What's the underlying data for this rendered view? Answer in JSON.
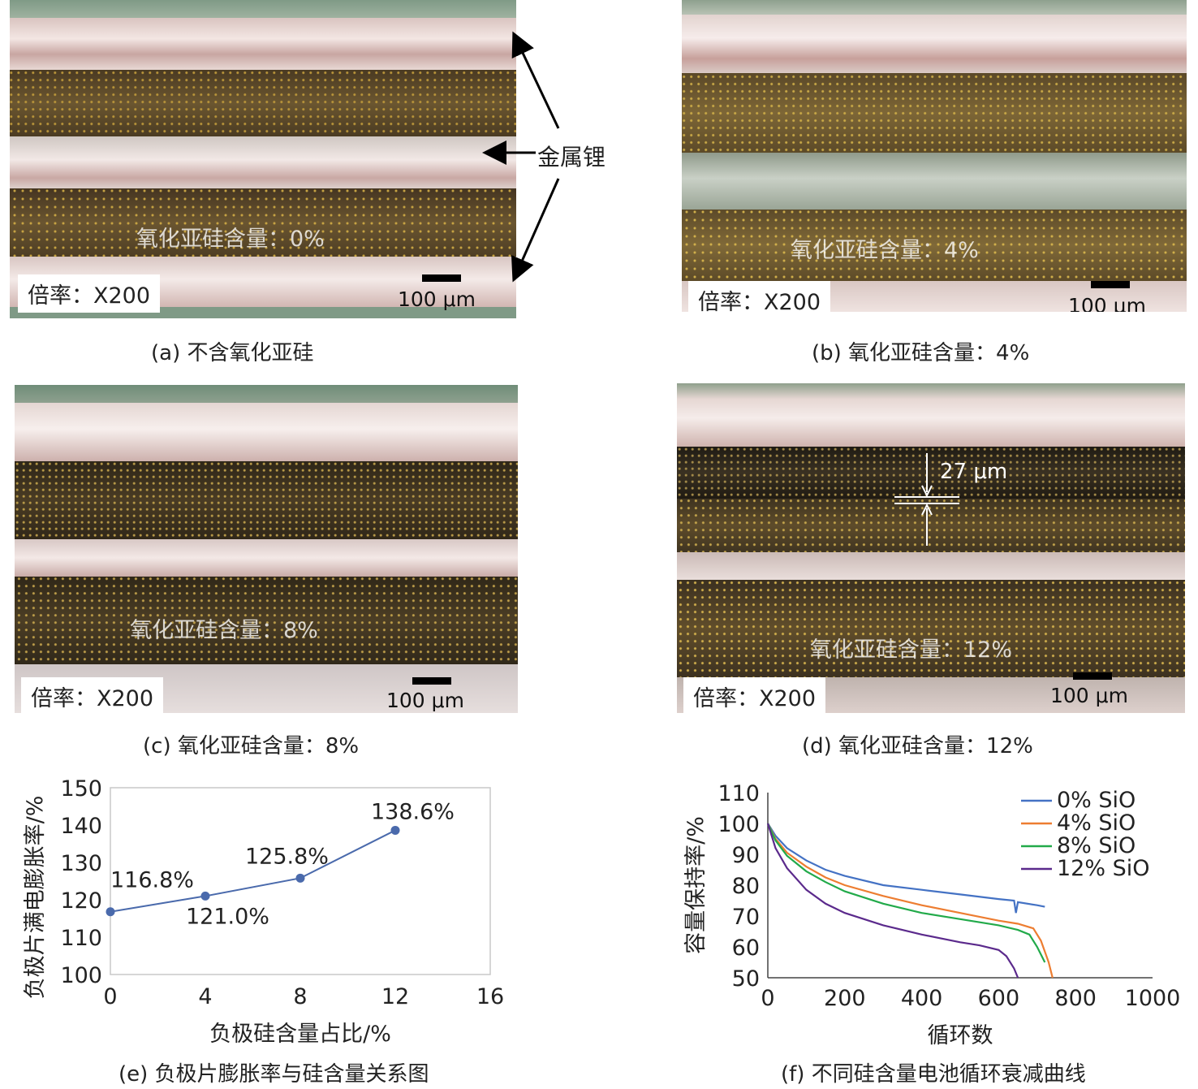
{
  "micrographs": [
    {
      "id": "a",
      "sio_label": "氧化亚硅含量：0%",
      "magnification": "倍率：X200",
      "scale_bar": "100 μm",
      "caption": "(a) 不含氧化亚硅"
    },
    {
      "id": "b",
      "sio_label": "氧化亚硅含量：4%",
      "magnification": "倍率：X200",
      "scale_bar": "100 μm",
      "caption": "(b) 氧化亚硅含量：4%"
    },
    {
      "id": "c",
      "sio_label": "氧化亚硅含量：8%",
      "magnification": "倍率：X200",
      "scale_bar": "100 μm",
      "caption": "(c) 氧化亚硅含量：8%"
    },
    {
      "id": "d",
      "sio_label": "氧化亚硅含量：12%",
      "magnification": "倍率：X200",
      "scale_bar": "100 μm",
      "caption": "(d) 氧化亚硅含量：12%"
    }
  ],
  "annotations": {
    "lithium_label": "金属锂",
    "gap_label": "27 μm"
  },
  "colors": {
    "marker": "#4a6aac",
    "s0": "#4472c4",
    "s4": "#ed7d31",
    "s8": "#22aa4a",
    "s12": "#5b2a8c"
  },
  "chart_data": [
    {
      "type": "line",
      "caption": "(e) 负极片膨胀率与硅含量关系图",
      "xlabel": "负极硅含量占比/%",
      "ylabel": "负极片满电膨胀率/%",
      "xlim": [
        0,
        16
      ],
      "ylim": [
        100,
        150
      ],
      "xticks": [
        0,
        4,
        8,
        12,
        16
      ],
      "yticks": [
        100,
        110,
        120,
        130,
        140,
        150
      ],
      "x": [
        0,
        4,
        8,
        12
      ],
      "values": [
        116.8,
        121.0,
        125.8,
        138.6
      ],
      "labels": [
        "116.8%",
        "121.0%",
        "125.8%",
        "138.6%"
      ]
    },
    {
      "type": "line",
      "caption": "(f) 不同硅含量电池循环衰减曲线",
      "xlabel": "循环数",
      "ylabel": "容量保持率/%",
      "xlim": [
        0,
        1000
      ],
      "ylim": [
        50,
        110
      ],
      "xticks": [
        0,
        200,
        400,
        600,
        800,
        1000
      ],
      "yticks": [
        50,
        60,
        70,
        80,
        90,
        100,
        110
      ],
      "legend_position": "top-right",
      "series": [
        {
          "name": "0% SiO",
          "x": [
            0,
            20,
            50,
            100,
            150,
            200,
            300,
            400,
            500,
            600,
            640,
            645,
            650,
            700,
            720
          ],
          "y": [
            100,
            96,
            92,
            88,
            85,
            83,
            80,
            78.5,
            77,
            75.5,
            75,
            71,
            74.5,
            73.5,
            73
          ]
        },
        {
          "name": "4% SiO",
          "x": [
            0,
            20,
            50,
            100,
            150,
            200,
            300,
            400,
            500,
            600,
            650,
            690,
            710,
            730,
            740
          ],
          "y": [
            100,
            95,
            90.5,
            86,
            82.5,
            80,
            76.5,
            73.5,
            71,
            68.5,
            67.5,
            66,
            62,
            55,
            50
          ]
        },
        {
          "name": "8% SiO",
          "x": [
            0,
            20,
            50,
            100,
            150,
            200,
            300,
            400,
            500,
            600,
            650,
            680,
            700,
            720
          ],
          "y": [
            100,
            94.5,
            89.5,
            84.5,
            81,
            78,
            74,
            71,
            69,
            67,
            65.5,
            64,
            60,
            55
          ]
        },
        {
          "name": "12% SiO",
          "x": [
            0,
            20,
            50,
            100,
            150,
            200,
            300,
            400,
            500,
            550,
            600,
            620,
            640,
            650
          ],
          "y": [
            100,
            92,
            85.5,
            78.5,
            74,
            71,
            67,
            64,
            61.5,
            60.5,
            59,
            57,
            53,
            50
          ]
        }
      ]
    }
  ]
}
